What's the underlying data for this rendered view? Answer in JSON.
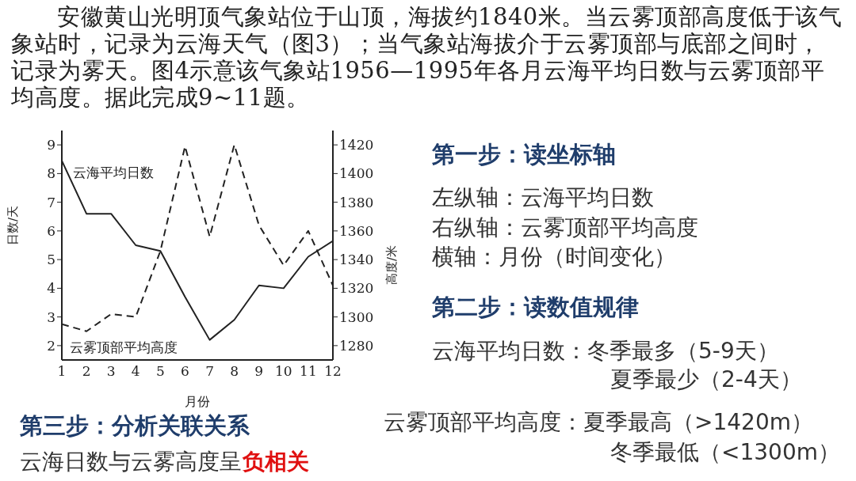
{
  "chart_data": {
    "type": "line",
    "xlabel": "月份",
    "ylabel": "日数/天",
    "y2label": "高度/米",
    "x": [
      1,
      2,
      3,
      4,
      5,
      6,
      7,
      8,
      9,
      10,
      11,
      12
    ],
    "xlim": [
      1,
      12
    ],
    "xticks": [
      1,
      2,
      3,
      4,
      5,
      6,
      7,
      8,
      9,
      10,
      11,
      12
    ],
    "ylim": [
      1.5,
      9.5
    ],
    "yticks": [
      2,
      3,
      4,
      5,
      6,
      7,
      8,
      9
    ],
    "y2lim": [
      1270,
      1430
    ],
    "y2ticks": [
      1280,
      1300,
      1320,
      1340,
      1360,
      1380,
      1400,
      1420
    ],
    "series": [
      {
        "name": "云海平均日数",
        "color": "#222222",
        "line_style": "solid",
        "values": [
          8.45,
          6.6,
          6.6,
          5.5,
          5.3,
          3.7,
          2.2,
          2.9,
          4.1,
          4.0,
          5.1,
          5.65
        ]
      },
      {
        "name": "云雾顶部平均高度",
        "color": "#222222",
        "line_style": "dashed",
        "axis": "y2",
        "values": [
          1295,
          1290,
          1302,
          1300,
          1346,
          1419,
          1356,
          1420,
          1364,
          1336,
          1360,
          1322
        ]
      }
    ],
    "legend": false,
    "marker": "none",
    "annotations": [
      "安徽黄山光明顶气象站位于山顶，海拔约1840米。当云雾顶部高度低于该气象站时，记录为云海天气（图3）；当气象站海拔介于云雾顶部与底部之间时，记录为雾天。图4示意该气象站1956—1995年各月云海平均日数与云雾顶部平均高度。据此完成9~11题。",
      "第一步：读坐标轴",
      "左纵轴：云海平均日数",
      "右纵轴：云雾顶部平均高度",
      "横轴：月份（时间变化）",
      "第二步：读数值规律",
      "云海平均日数：冬季最多（5-9天）",
      "夏季最少（2-4天）",
      "云雾顶部平均高度：夏季最高（>1420m）",
      "冬季最低（<1300m）",
      "第三步：分析关联关系",
      "云海日数与云雾高度呈",
      "负相关"
    ]
  }
}
